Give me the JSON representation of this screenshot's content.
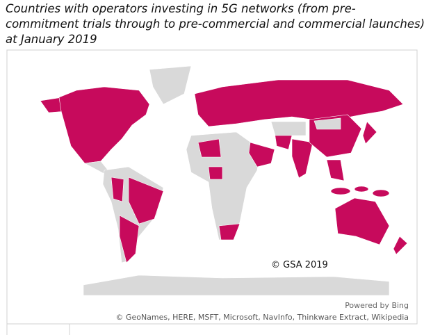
{
  "header": {
    "title_lines": [
      "Countries with operators investing in 5G networks (from pre-",
      "commitment trials through to pre-commercial and commercial launches)",
      "at January 2019"
    ]
  },
  "map": {
    "copyright": "© GSA 2019",
    "powered_by": "Powered by Bing",
    "attribution": "© GeoNames, HERE, MSFT, Microsoft, NavInfo, Thinkware Extract, Wikipedia"
  }
}
